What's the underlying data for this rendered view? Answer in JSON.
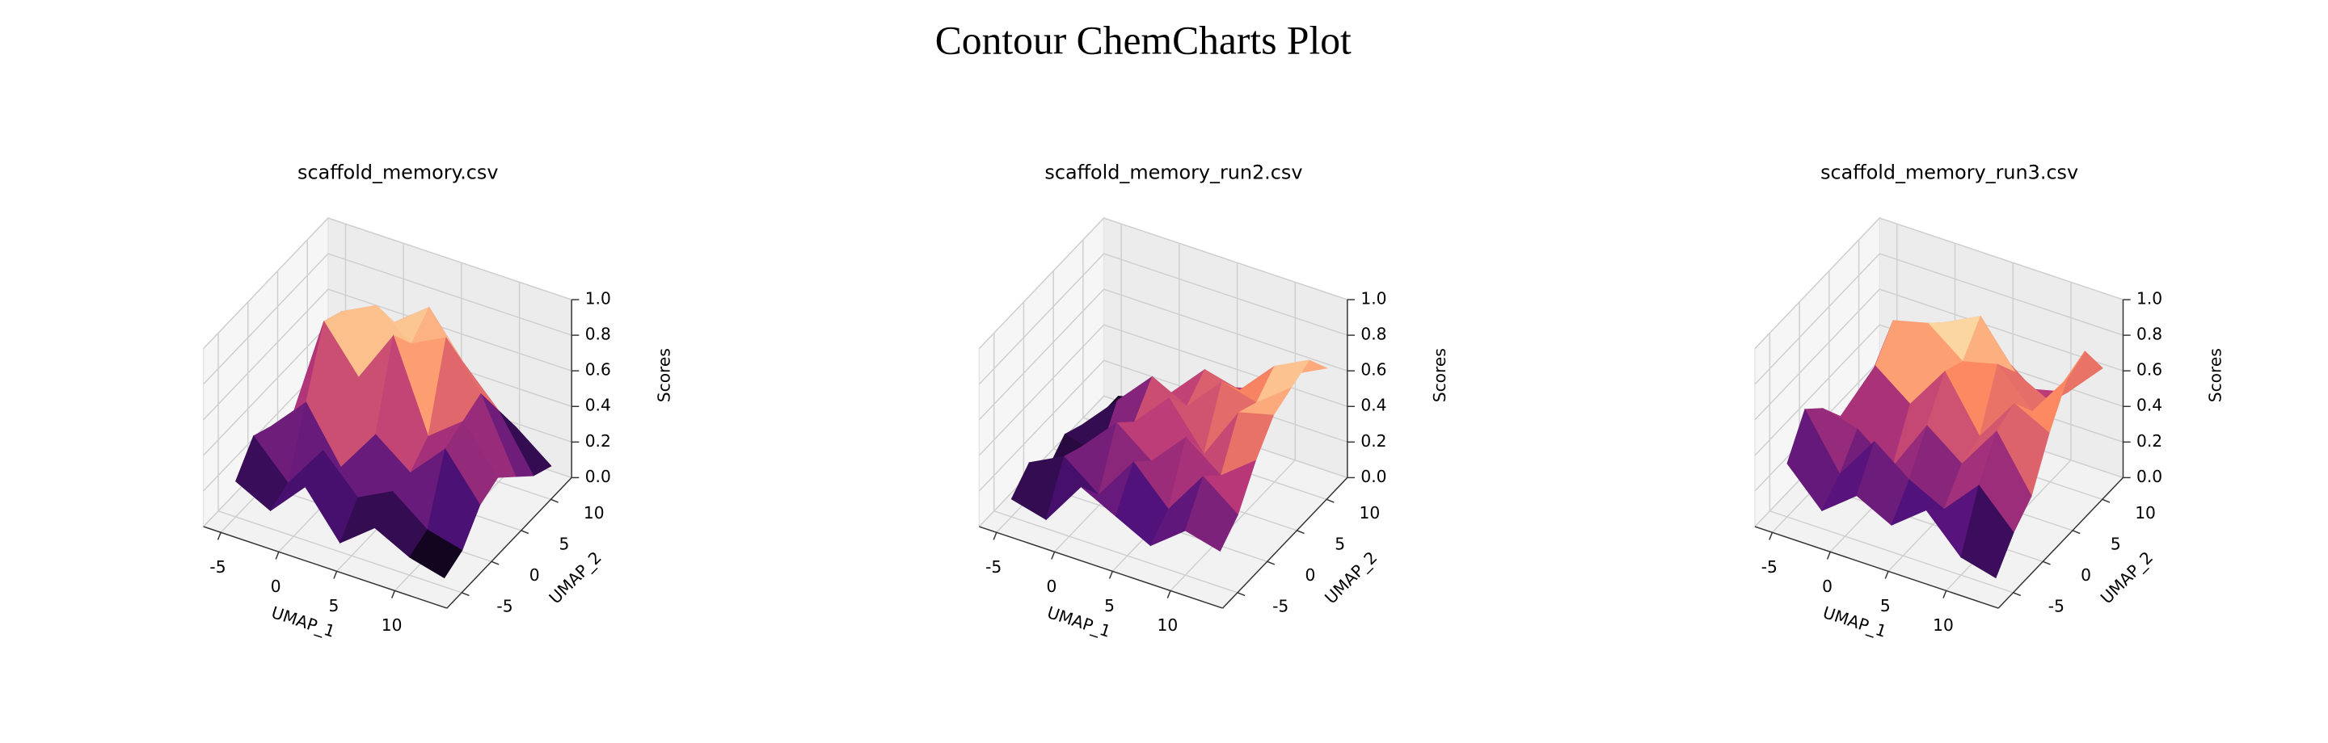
{
  "title": "Contour ChemCharts Plot",
  "chart_data": [
    {
      "type": "surface",
      "title": "scaffold_memory.csv",
      "colormap": "magma",
      "x_label": "UMAP_1",
      "y_label": "UMAP_2",
      "z_label": "Scores",
      "x": [
        -5,
        -2,
        1,
        4,
        7,
        10,
        13
      ],
      "y": [
        -5,
        -2,
        1,
        4,
        7,
        10,
        13
      ],
      "z": [
        [
          0.2,
          0.1,
          0.3,
          0.05,
          0.2,
          0.1,
          0.05
        ],
        [
          0.35,
          0.15,
          0.4,
          0.2,
          0.3,
          0.15,
          0.1
        ],
        [
          0.3,
          0.5,
          0.2,
          0.45,
          0.3,
          0.5,
          0.25
        ],
        [
          0.2,
          0.85,
          0.6,
          0.9,
          0.4,
          0.55,
          0.3
        ],
        [
          0.1,
          0.8,
          0.9,
          0.75,
          0.85,
          0.6,
          0.2
        ],
        [
          0.1,
          0.3,
          0.7,
          0.85,
          0.6,
          0.4,
          0.1
        ],
        [
          0.05,
          0.2,
          0.3,
          0.4,
          0.3,
          0.2,
          0.05
        ]
      ],
      "xlim": [
        -6.5,
        14.5
      ],
      "ylim": [
        -7.5,
        13.5
      ],
      "zlim": [
        0,
        1
      ],
      "xticks": [
        -5,
        0,
        5,
        10
      ],
      "yticks": [
        -5,
        0,
        5,
        10
      ],
      "zticks": [
        {
          "value": 0,
          "label": "0.0"
        },
        0.2,
        0.4,
        0.6,
        0.8,
        {
          "value": 1,
          "label": "1.0"
        }
      ],
      "grid": true
    },
    {
      "type": "surface",
      "title": "scaffold_memory_run2.csv",
      "colormap": "magma",
      "x_label": "UMAP_1",
      "y_label": "UMAP_2",
      "z_label": "Scores",
      "x": [
        -5,
        -2,
        1,
        4,
        7,
        10,
        13
      ],
      "y": [
        -5,
        -2,
        1,
        4,
        7,
        10,
        13
      ],
      "z": [
        [
          0.1,
          0.05,
          0.3,
          0.2,
          0.1,
          0.25,
          0.2
        ],
        [
          0.2,
          0.3,
          0.15,
          0.4,
          0.2,
          0.45,
          0.3
        ],
        [
          0.05,
          0.25,
          0.45,
          0.3,
          0.5,
          0.35,
          0.5
        ],
        [
          0.15,
          0.1,
          0.35,
          0.55,
          0.3,
          0.6,
          0.65
        ],
        [
          0.1,
          0.3,
          0.5,
          0.4,
          0.6,
          0.55,
          0.7
        ],
        [
          0.05,
          0.2,
          0.3,
          0.5,
          0.45,
          0.65,
          0.75
        ],
        [
          0.05,
          0.1,
          0.2,
          0.3,
          0.35,
          0.5,
          0.6
        ]
      ],
      "xlim": [
        -6.5,
        14.5
      ],
      "ylim": [
        -7.5,
        13.5
      ],
      "zlim": [
        0,
        1
      ],
      "xticks": [
        -5,
        0,
        5,
        10
      ],
      "yticks": [
        -5,
        0,
        5,
        10
      ],
      "zticks": [
        {
          "value": 0,
          "label": "0.0"
        },
        0.2,
        0.4,
        0.6,
        0.8,
        {
          "value": 1,
          "label": "1.0"
        }
      ],
      "grid": true
    },
    {
      "type": "surface",
      "title": "scaffold_memory_run3.csv",
      "colormap": "magma",
      "x_label": "UMAP_1",
      "y_label": "UMAP_2",
      "z_label": "Scores",
      "x": [
        -5,
        -2,
        1,
        4,
        7,
        10,
        13
      ],
      "y": [
        -5,
        -2,
        1,
        4,
        7,
        10,
        13
      ],
      "z": [
        [
          0.3,
          0.1,
          0.25,
          0.15,
          0.3,
          0.1,
          0.05
        ],
        [
          0.5,
          0.2,
          0.45,
          0.3,
          0.2,
          0.4,
          0.2
        ],
        [
          0.4,
          0.35,
          0.2,
          0.5,
          0.35,
          0.6,
          0.3
        ],
        [
          0.25,
          0.6,
          0.45,
          0.7,
          0.4,
          0.65,
          0.55
        ],
        [
          0.2,
          0.75,
          0.8,
          0.65,
          0.7,
          0.5,
          0.75
        ],
        [
          0.15,
          0.5,
          0.7,
          0.8,
          0.55,
          0.45,
          0.8
        ],
        [
          0.1,
          0.3,
          0.4,
          0.5,
          0.35,
          0.4,
          0.6
        ]
      ],
      "xlim": [
        -6.5,
        14.5
      ],
      "ylim": [
        -7.5,
        13.5
      ],
      "zlim": [
        0,
        1
      ],
      "xticks": [
        -5,
        0,
        5,
        10
      ],
      "yticks": [
        -5,
        0,
        5,
        10
      ],
      "zticks": [
        {
          "value": 0,
          "label": "0.0"
        },
        0.2,
        0.4,
        0.6,
        0.8,
        {
          "value": 1,
          "label": "1.0"
        }
      ],
      "grid": true
    }
  ]
}
